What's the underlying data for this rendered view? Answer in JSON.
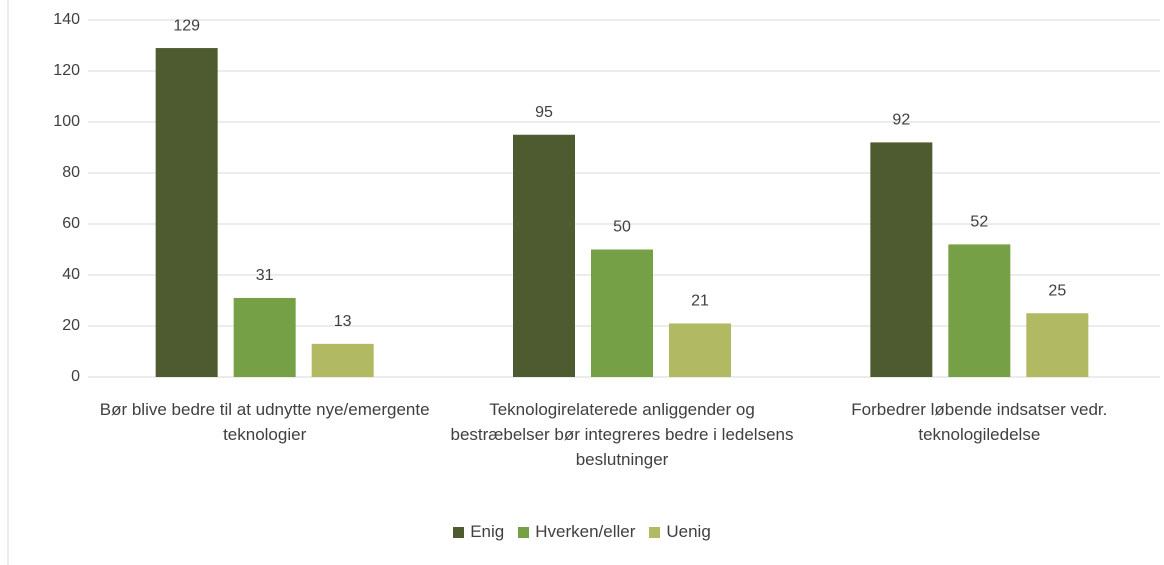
{
  "chart_data": {
    "type": "bar",
    "categories": [
      "Bør blive bedre til at udnytte nye/emergente teknologier",
      "Teknologirelaterede anliggender og bestræbelser bør integreres bedre i ledelsens beslutninger",
      "Forbedrer løbende indsatser vedr. teknologiledelse"
    ],
    "series": [
      {
        "name": "Enig",
        "color": "#4e5b31",
        "values": [
          129,
          95,
          92
        ]
      },
      {
        "name": "Hverken/eller",
        "color": "#76a046",
        "values": [
          31,
          50,
          52
        ]
      },
      {
        "name": "Uenig",
        "color": "#b1b962",
        "values": [
          13,
          21,
          25
        ]
      }
    ],
    "ylim": [
      0,
      140
    ],
    "yticks": [
      0,
      20,
      40,
      60,
      80,
      100,
      120,
      140
    ],
    "grid": true,
    "legend": "bottom"
  }
}
